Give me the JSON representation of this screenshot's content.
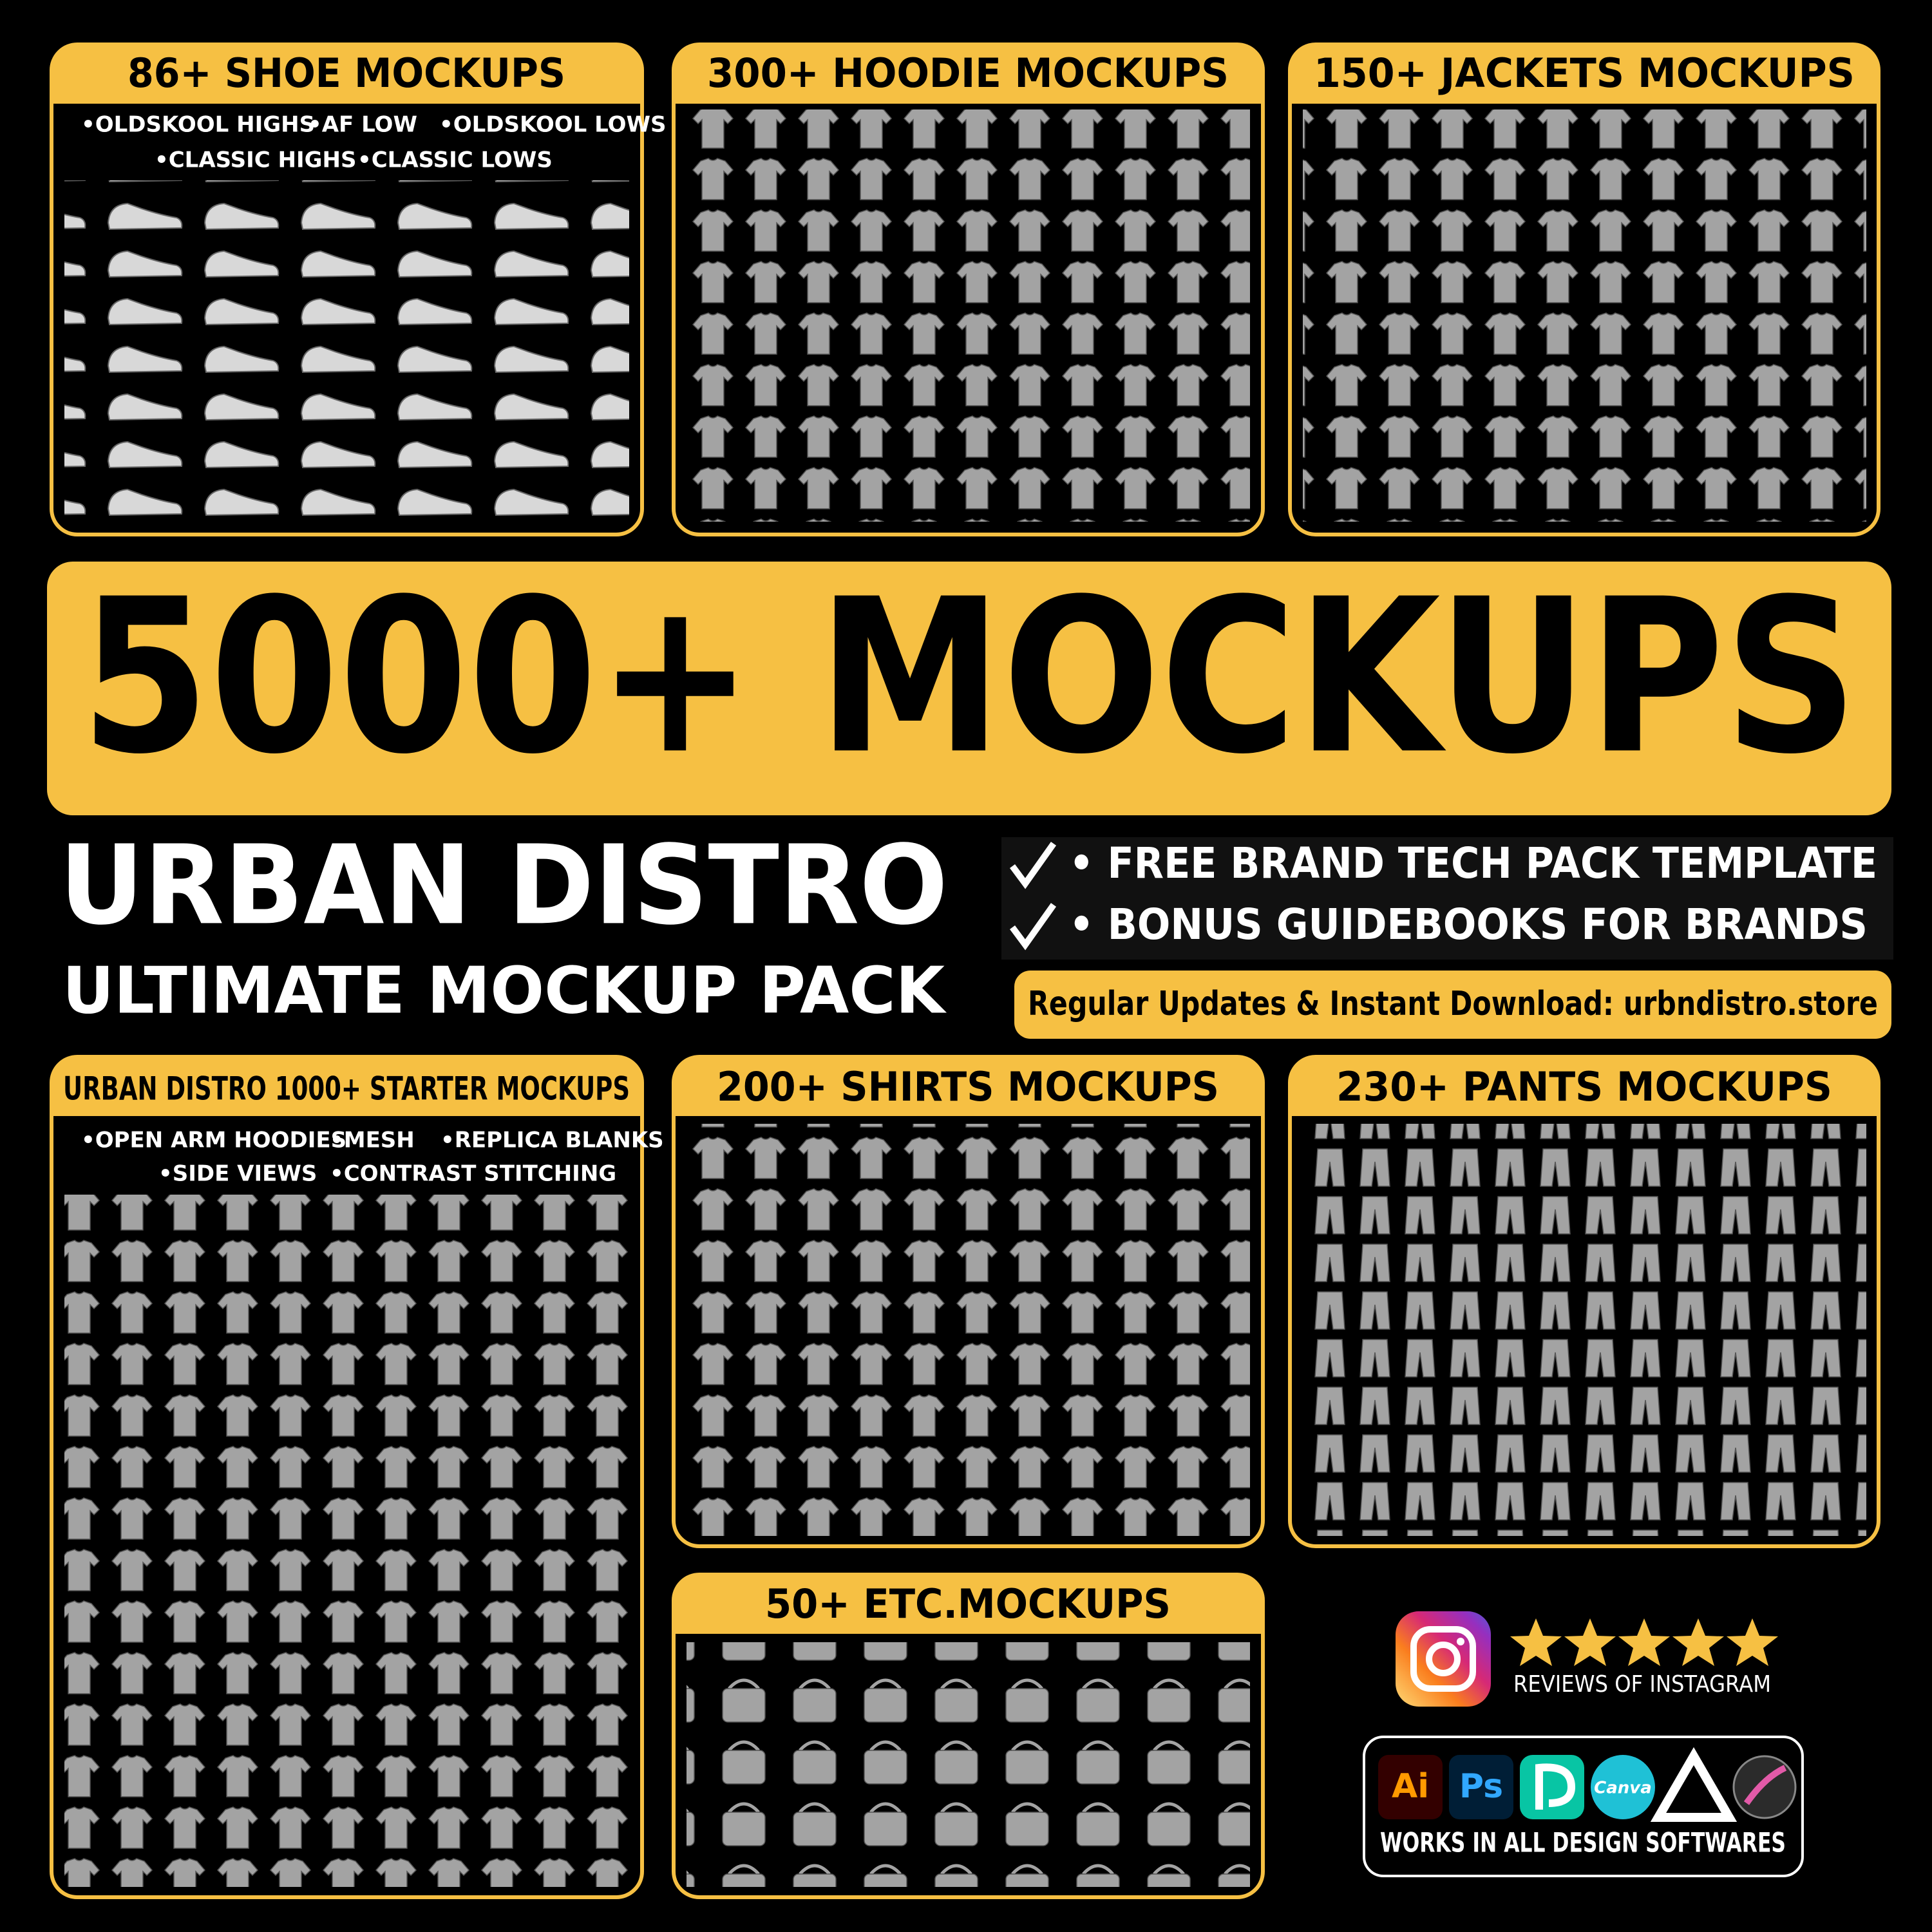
{
  "panels": {
    "shoes": {
      "title": "86+ SHOE MOCKUPS",
      "items": [
        "•OLDSKOOL HIGHS",
        "•AF LOW",
        "•OLDSKOOL  LOWS",
        "•CLASSIC HIGHS",
        "•CLASSIC LOWS"
      ]
    },
    "hoodies": {
      "title": "300+ HOODIE MOCKUPS"
    },
    "jackets": {
      "title": "150+ JACKETS MOCKUPS"
    },
    "starter": {
      "title": "URBAN DISTRO 1000+ STARTER MOCKUPS",
      "items": [
        "•OPEN ARM HOODIES",
        "•MESH",
        "•REPLICA BLANKS",
        "•SIDE VIEWS",
        "•CONTRAST STITCHING"
      ]
    },
    "shirts": {
      "title": "200+ SHIRTS MOCKUPS"
    },
    "pants": {
      "title": "230+ PANTS MOCKUPS"
    },
    "etc": {
      "title": "50+ ETC.MOCKUPS"
    }
  },
  "banner": {
    "headline": "5000+ MOCKUPS"
  },
  "brand": {
    "name": "URBAN DISTRO",
    "tagline": "ULTIMATE MOCKUP PACK"
  },
  "bonuses": [
    "• FREE BRAND TECH PACK TEMPLATE",
    "• BONUS GUIDEBOOKS FOR BRANDS"
  ],
  "download_note": "Regular Updates & Instant Download: urbndistro.store",
  "reviews": {
    "label": "REVIEWS OF INSTAGRAM"
  },
  "software": {
    "icons": [
      "Ai",
      "Ps",
      "Canva"
    ],
    "label": "WORKS IN ALL DESIGN SOFTWARES"
  }
}
